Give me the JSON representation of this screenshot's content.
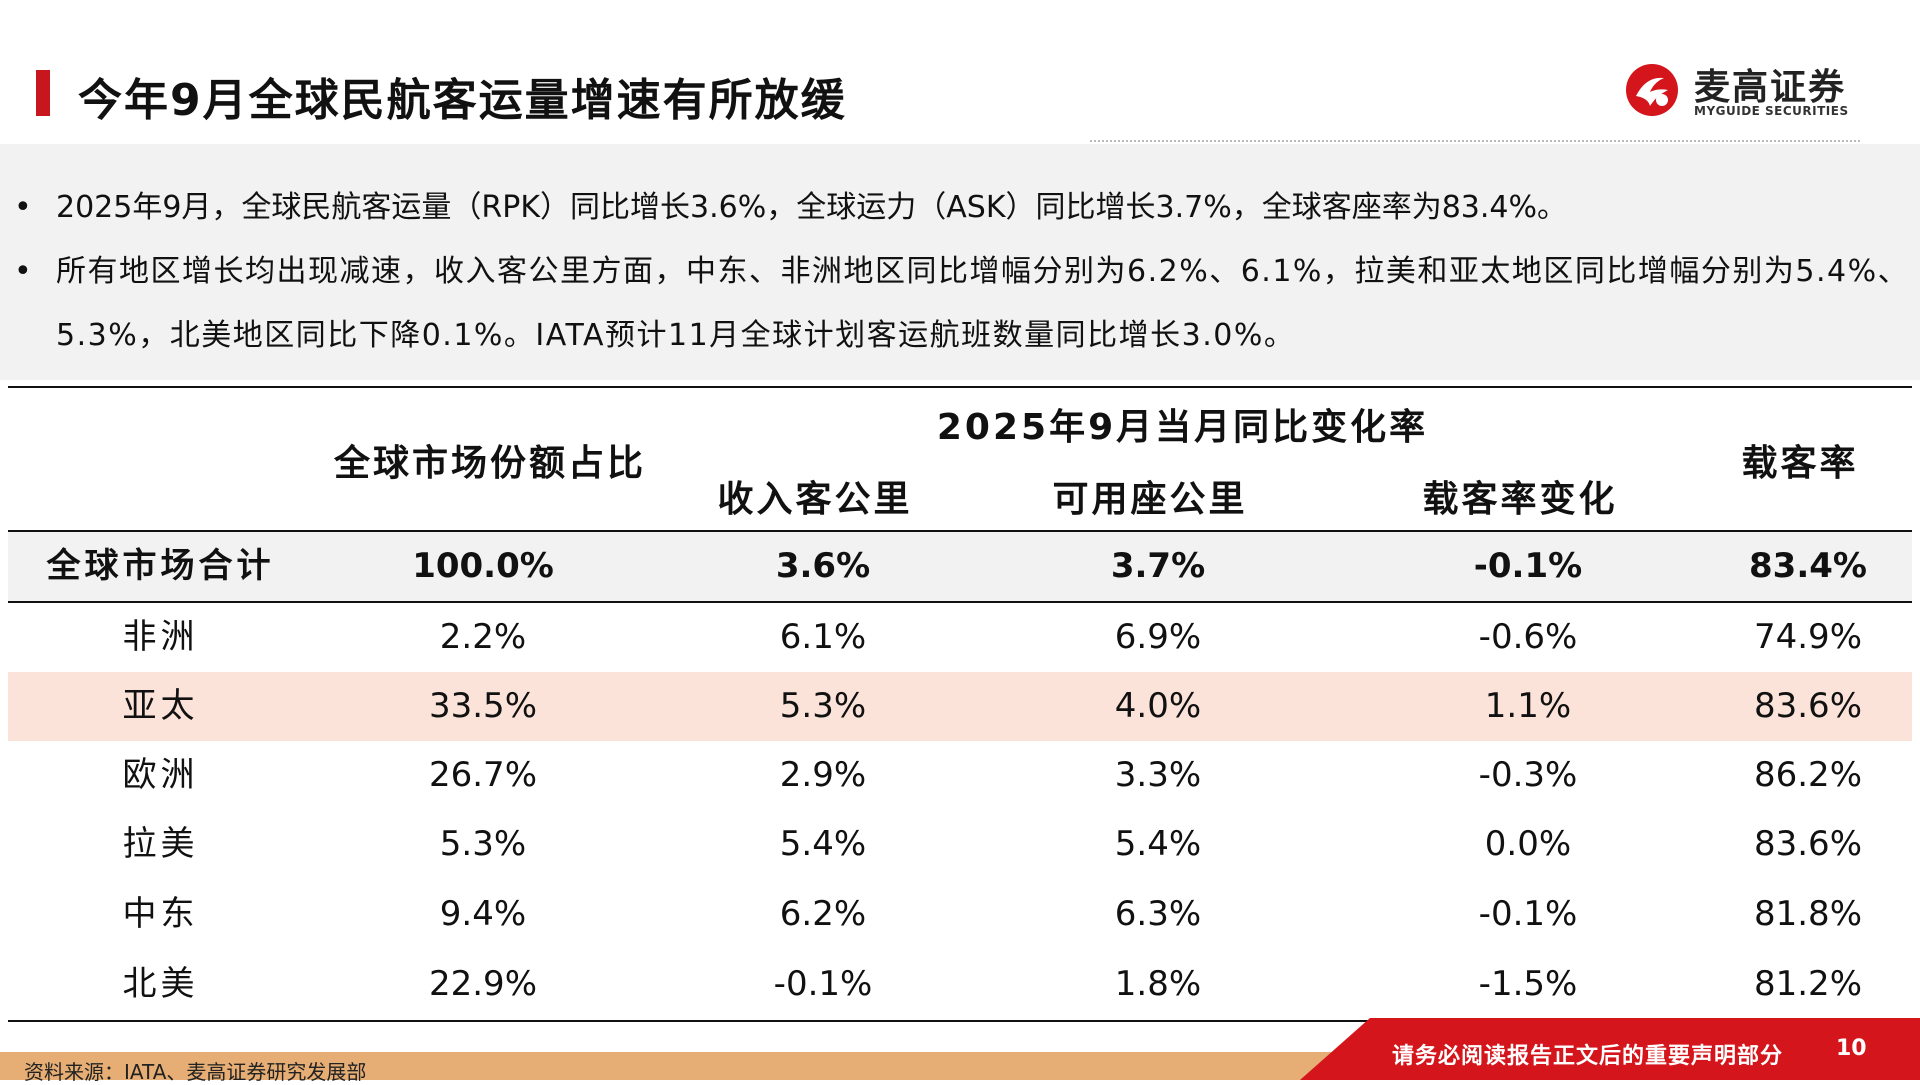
{
  "header": {
    "title": "今年9月全球民航客运量增速有所放缓",
    "logo_cn": "麦高证券",
    "logo_en": "MYGUIDE SECURITIES",
    "accent_color": "#c8161e"
  },
  "summary": {
    "bullets": [
      "2025年9月，全球民航客运量（RPK）同比增长3.6%，全球运力（ASK）同比增长3.7%，全球客座率为83.4%。",
      "所有地区增长均出现减速，收入客公里方面，中东、非洲地区同比增幅分别为6.2%、6.1%，拉美和亚太地区同比增幅分别为5.4%、5.3%，北美地区同比下降0.1%。IATA预计11月全球计划客运航班数量同比增长3.0%。"
    ]
  },
  "table": {
    "headers": {
      "market_share": "全球市场份额占比",
      "group": "2025年9月当月同比变化率",
      "rpk": "收入客公里",
      "ask": "可用座公里",
      "load_change": "载客率变化",
      "load_factor": "载客率"
    },
    "rows": [
      {
        "region": "全球市场合计",
        "share": "100.0%",
        "rpk": "3.6%",
        "ask": "3.7%",
        "load_change": "-0.1%",
        "load_factor": "83.4%"
      },
      {
        "region": "非洲",
        "share": "2.2%",
        "rpk": "6.1%",
        "ask": "6.9%",
        "load_change": "-0.6%",
        "load_factor": "74.9%"
      },
      {
        "region": "亚太",
        "share": "33.5%",
        "rpk": "5.3%",
        "ask": "4.0%",
        "load_change": "1.1%",
        "load_factor": "83.6%"
      },
      {
        "region": "欧洲",
        "share": "26.7%",
        "rpk": "2.9%",
        "ask": "3.3%",
        "load_change": "-0.3%",
        "load_factor": "86.2%"
      },
      {
        "region": "拉美",
        "share": "5.3%",
        "rpk": "5.4%",
        "ask": "5.4%",
        "load_change": "0.0%",
        "load_factor": "83.6%"
      },
      {
        "region": "中东",
        "share": "9.4%",
        "rpk": "6.2%",
        "ask": "6.3%",
        "load_change": "-0.1%",
        "load_factor": "81.8%"
      },
      {
        "region": "北美",
        "share": "22.9%",
        "rpk": "-0.1%",
        "ask": "1.8%",
        "load_change": "-1.5%",
        "load_factor": "81.2%"
      }
    ],
    "highlight_color": "#fbe3d9"
  },
  "footer": {
    "source": "资料来源：IATA、麦高证券研究发展部",
    "notice": "请务必阅读报告正文后的重要声明部分",
    "page": "10"
  }
}
